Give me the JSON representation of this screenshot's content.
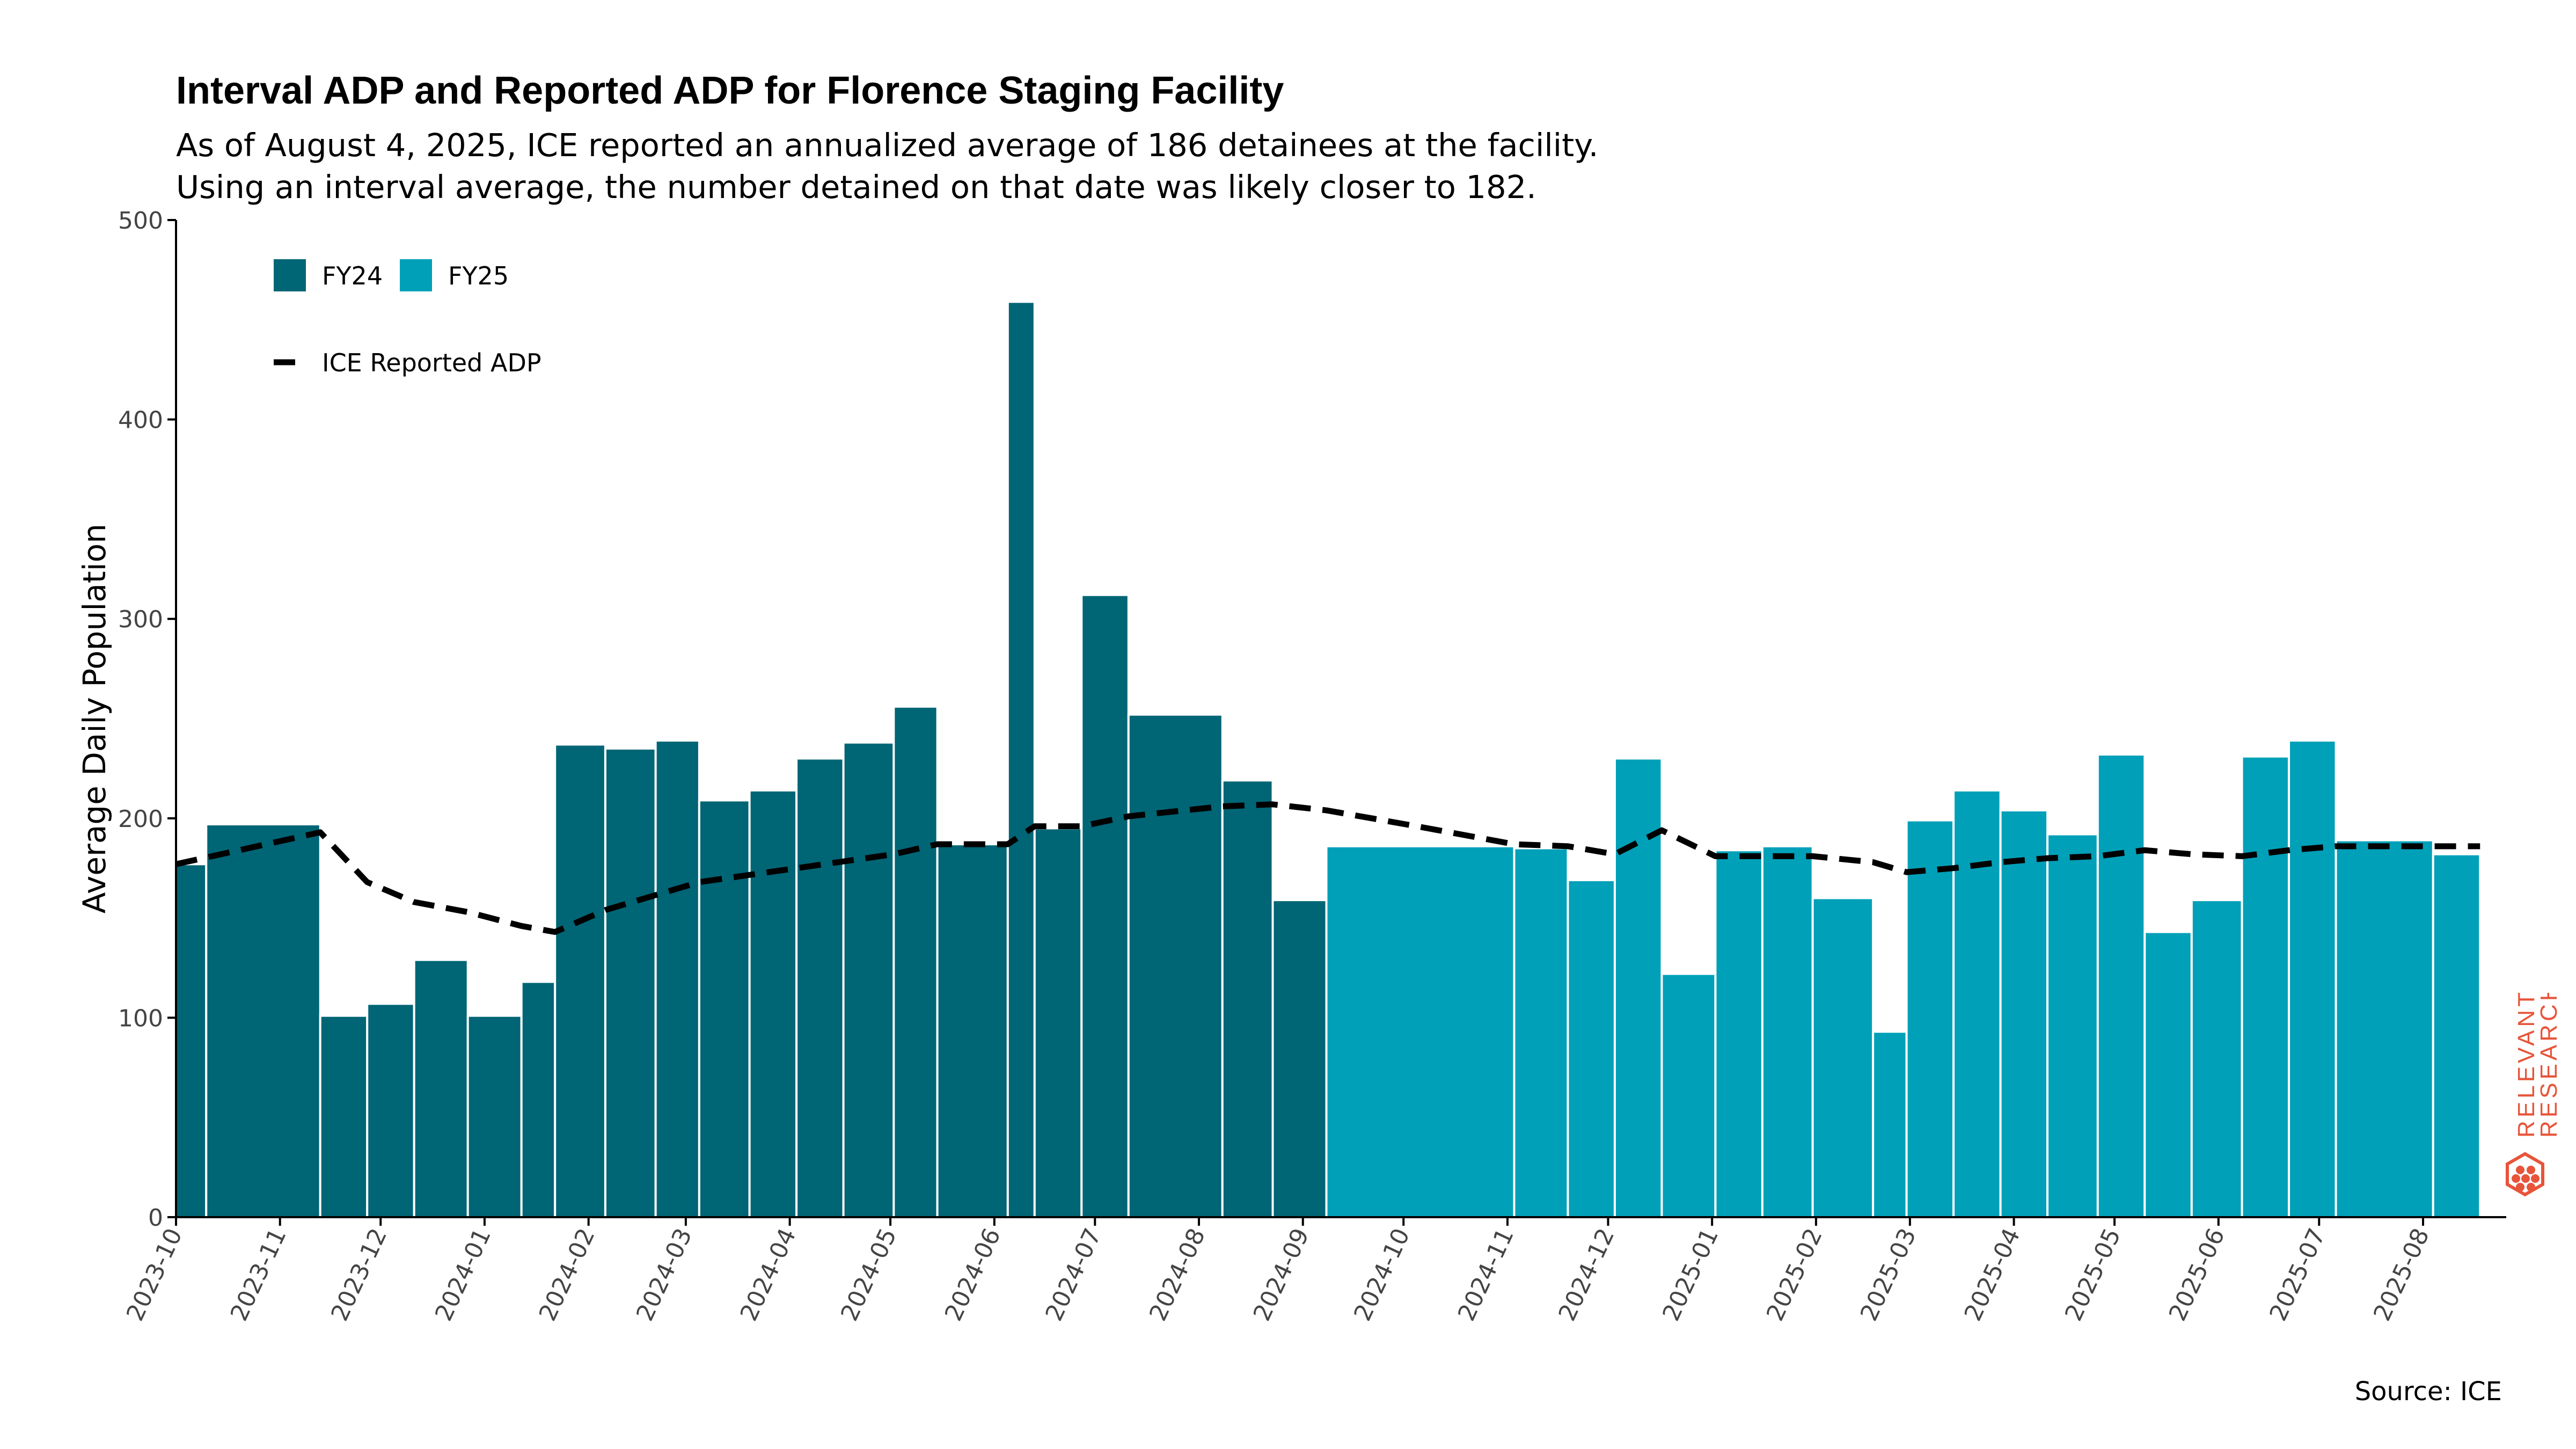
{
  "title": "Interval ADP and Reported ADP for Florence Staging Facility",
  "subtitle_lines": [
    "As of August 4, 2025, ICE reported an annualized average of 186 detainees at the facility.",
    "Using an interval average, the number detained on that date was likely closer to 182."
  ],
  "source": "Source: ICE",
  "logo": {
    "line1": "RELEVANT",
    "line2": "RESEARCH",
    "icon": "hexagon-dots-icon",
    "color": "#E8543A"
  },
  "chart_data": {
    "type": "bar",
    "title": "Interval ADP and Reported ADP for Florence Staging Facility",
    "ylabel": "Average Daily Population",
    "xlabel": "",
    "ylim": [
      0,
      500
    ],
    "xlim": [
      "2023-10-01",
      "2025-08-25"
    ],
    "y_ticks": [
      0,
      100,
      200,
      300,
      400,
      500
    ],
    "x_ticks": [
      "2023-10",
      "2023-11",
      "2023-12",
      "2024-01",
      "2024-02",
      "2024-03",
      "2024-04",
      "2024-05",
      "2024-06",
      "2024-07",
      "2024-08",
      "2024-09",
      "2024-10",
      "2024-11",
      "2024-12",
      "2025-01",
      "2025-02",
      "2025-03",
      "2025-04",
      "2025-05",
      "2025-06",
      "2025-07",
      "2025-08"
    ],
    "grid": false,
    "legend_position": "top-left",
    "colors": {
      "FY24": "#006575",
      "FY25": "#00A0B8",
      "reported": "#000000"
    },
    "legend": [
      {
        "label": "FY24",
        "kind": "swatch",
        "color": "#006575"
      },
      {
        "label": "FY25",
        "kind": "swatch",
        "color": "#00A0B8"
      },
      {
        "label": "ICE Reported ADP",
        "kind": "dashed-line",
        "color": "#000000"
      }
    ],
    "series": [
      {
        "name": "Interval ADP",
        "bars": [
          {
            "start": "2023-10-01",
            "end": "2023-10-10",
            "value": 177,
            "fy": "FY24"
          },
          {
            "start": "2023-10-10",
            "end": "2023-11-13",
            "value": 197,
            "fy": "FY24"
          },
          {
            "start": "2023-11-13",
            "end": "2023-11-27",
            "value": 101,
            "fy": "FY24"
          },
          {
            "start": "2023-11-27",
            "end": "2023-12-11",
            "value": 107,
            "fy": "FY24"
          },
          {
            "start": "2023-12-11",
            "end": "2023-12-27",
            "value": 129,
            "fy": "FY24"
          },
          {
            "start": "2023-12-27",
            "end": "2024-01-12",
            "value": 101,
            "fy": "FY24"
          },
          {
            "start": "2024-01-12",
            "end": "2024-01-22",
            "value": 118,
            "fy": "FY24"
          },
          {
            "start": "2024-01-22",
            "end": "2024-02-06",
            "value": 237,
            "fy": "FY24"
          },
          {
            "start": "2024-02-06",
            "end": "2024-02-21",
            "value": 235,
            "fy": "FY24"
          },
          {
            "start": "2024-02-21",
            "end": "2024-03-05",
            "value": 239,
            "fy": "FY24"
          },
          {
            "start": "2024-03-05",
            "end": "2024-03-20",
            "value": 209,
            "fy": "FY24"
          },
          {
            "start": "2024-03-20",
            "end": "2024-04-03",
            "value": 214,
            "fy": "FY24"
          },
          {
            "start": "2024-04-03",
            "end": "2024-04-17",
            "value": 230,
            "fy": "FY24"
          },
          {
            "start": "2024-04-17",
            "end": "2024-05-02",
            "value": 238,
            "fy": "FY24"
          },
          {
            "start": "2024-05-02",
            "end": "2024-05-15",
            "value": 256,
            "fy": "FY24"
          },
          {
            "start": "2024-05-15",
            "end": "2024-06-05",
            "value": 187,
            "fy": "FY24"
          },
          {
            "start": "2024-06-05",
            "end": "2024-06-13",
            "value": 459,
            "fy": "FY24"
          },
          {
            "start": "2024-06-13",
            "end": "2024-06-27",
            "value": 195,
            "fy": "FY24"
          },
          {
            "start": "2024-06-27",
            "end": "2024-07-11",
            "value": 312,
            "fy": "FY24"
          },
          {
            "start": "2024-07-11",
            "end": "2024-08-08",
            "value": 252,
            "fy": "FY24"
          },
          {
            "start": "2024-08-08",
            "end": "2024-08-23",
            "value": 219,
            "fy": "FY24"
          },
          {
            "start": "2024-08-23",
            "end": "2024-09-08",
            "value": 159,
            "fy": "FY24"
          },
          {
            "start": "2024-09-08",
            "end": "2024-11-03",
            "value": 186,
            "fy": "FY25"
          },
          {
            "start": "2024-11-03",
            "end": "2024-11-19",
            "value": 185,
            "fy": "FY25"
          },
          {
            "start": "2024-11-19",
            "end": "2024-12-03",
            "value": 169,
            "fy": "FY25"
          },
          {
            "start": "2024-12-03",
            "end": "2024-12-17",
            "value": 230,
            "fy": "FY25"
          },
          {
            "start": "2024-12-17",
            "end": "2025-01-02",
            "value": 122,
            "fy": "FY25"
          },
          {
            "start": "2025-01-02",
            "end": "2025-01-16",
            "value": 184,
            "fy": "FY25"
          },
          {
            "start": "2025-01-16",
            "end": "2025-01-31",
            "value": 186,
            "fy": "FY25"
          },
          {
            "start": "2025-01-31",
            "end": "2025-02-18",
            "value": 160,
            "fy": "FY25"
          },
          {
            "start": "2025-02-18",
            "end": "2025-02-28",
            "value": 93,
            "fy": "FY25"
          },
          {
            "start": "2025-02-28",
            "end": "2025-03-14",
            "value": 199,
            "fy": "FY25"
          },
          {
            "start": "2025-03-14",
            "end": "2025-03-28",
            "value": 214,
            "fy": "FY25"
          },
          {
            "start": "2025-03-28",
            "end": "2025-04-11",
            "value": 204,
            "fy": "FY25"
          },
          {
            "start": "2025-04-11",
            "end": "2025-04-26",
            "value": 192,
            "fy": "FY25"
          },
          {
            "start": "2025-04-26",
            "end": "2025-05-10",
            "value": 232,
            "fy": "FY25"
          },
          {
            "start": "2025-05-10",
            "end": "2025-05-24",
            "value": 143,
            "fy": "FY25"
          },
          {
            "start": "2025-05-24",
            "end": "2025-06-08",
            "value": 159,
            "fy": "FY25"
          },
          {
            "start": "2025-06-08",
            "end": "2025-06-22",
            "value": 231,
            "fy": "FY25"
          },
          {
            "start": "2025-06-22",
            "end": "2025-07-06",
            "value": 239,
            "fy": "FY25"
          },
          {
            "start": "2025-07-06",
            "end": "2025-08-04",
            "value": 189,
            "fy": "FY25"
          },
          {
            "start": "2025-08-04",
            "end": "2025-08-18",
            "value": 182,
            "fy": "FY25"
          }
        ]
      },
      {
        "name": "ICE Reported ADP",
        "style": "dashed",
        "points": [
          {
            "x": "2023-10-01",
            "y": 177
          },
          {
            "x": "2023-11-13",
            "y": 193
          },
          {
            "x": "2023-11-27",
            "y": 168
          },
          {
            "x": "2023-12-11",
            "y": 158
          },
          {
            "x": "2023-12-27",
            "y": 153
          },
          {
            "x": "2024-01-12",
            "y": 146
          },
          {
            "x": "2024-01-22",
            "y": 143
          },
          {
            "x": "2024-02-06",
            "y": 154
          },
          {
            "x": "2024-03-05",
            "y": 168
          },
          {
            "x": "2024-04-03",
            "y": 175
          },
          {
            "x": "2024-05-02",
            "y": 182
          },
          {
            "x": "2024-05-15",
            "y": 187
          },
          {
            "x": "2024-06-05",
            "y": 187
          },
          {
            "x": "2024-06-13",
            "y": 196
          },
          {
            "x": "2024-06-27",
            "y": 196
          },
          {
            "x": "2024-07-11",
            "y": 201
          },
          {
            "x": "2024-08-08",
            "y": 206
          },
          {
            "x": "2024-08-23",
            "y": 207
          },
          {
            "x": "2024-09-08",
            "y": 204
          },
          {
            "x": "2024-10-05",
            "y": 196
          },
          {
            "x": "2024-11-03",
            "y": 187
          },
          {
            "x": "2024-11-19",
            "y": 186
          },
          {
            "x": "2024-12-03",
            "y": 182
          },
          {
            "x": "2024-12-17",
            "y": 194
          },
          {
            "x": "2025-01-02",
            "y": 181
          },
          {
            "x": "2025-01-16",
            "y": 181
          },
          {
            "x": "2025-01-31",
            "y": 181
          },
          {
            "x": "2025-02-18",
            "y": 178
          },
          {
            "x": "2025-02-28",
            "y": 173
          },
          {
            "x": "2025-03-14",
            "y": 175
          },
          {
            "x": "2025-03-28",
            "y": 178
          },
          {
            "x": "2025-04-11",
            "y": 180
          },
          {
            "x": "2025-04-26",
            "y": 181
          },
          {
            "x": "2025-05-10",
            "y": 184
          },
          {
            "x": "2025-05-24",
            "y": 182
          },
          {
            "x": "2025-06-08",
            "y": 181
          },
          {
            "x": "2025-06-22",
            "y": 184
          },
          {
            "x": "2025-07-06",
            "y": 186
          },
          {
            "x": "2025-08-04",
            "y": 186
          },
          {
            "x": "2025-08-18",
            "y": 186
          }
        ]
      }
    ]
  }
}
